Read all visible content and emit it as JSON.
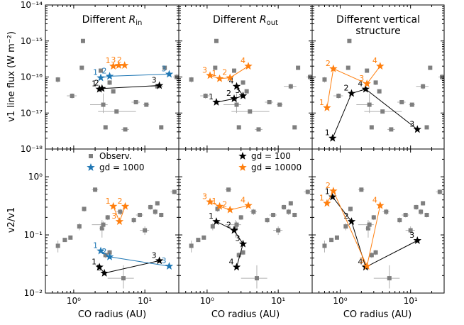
{
  "figure": {
    "ylabel_top": "v1 line flux (W m⁻²)",
    "ylabel_bottom": "v2/v1",
    "xlabel": "CO radius (AU)"
  },
  "colors": {
    "obs": "#7f7f7f",
    "gd100": "#000000",
    "gd1000": "#1f77b4",
    "gd10000": "#ff7f0e"
  },
  "legends": {
    "left": [
      {
        "marker": "square",
        "color": "#7f7f7f",
        "label": "Observ."
      },
      {
        "marker": "star",
        "color": "#1f77b4",
        "label": "gd = 1000"
      }
    ],
    "middle": [
      {
        "marker": "star",
        "color": "#000000",
        "label": "gd = 100"
      },
      {
        "marker": "star",
        "color": "#ff7f0e",
        "label": "gd = 10000"
      }
    ]
  },
  "chart_data": {
    "type": "scatter",
    "xscale": "log",
    "xlim": [
      0.4,
      30
    ],
    "xticks": [
      "10⁰",
      "10¹"
    ],
    "top_row": {
      "ylabel": "v1 line flux (W m⁻²)",
      "yscale": "log",
      "ylim": [
        1e-18,
        1e-14
      ],
      "yticks": [
        "10⁻¹⁸",
        "10⁻¹⁷",
        "10⁻¹⁶",
        "10⁻¹⁵",
        "10⁻¹⁴"
      ],
      "observations": [
        {
          "x": 0.6,
          "y": 8.5e-17,
          "xerr": [
            0.58,
            0.62
          ],
          "yerr": [
            7e-17,
            1e-16
          ]
        },
        {
          "x": 0.95,
          "y": 3e-17,
          "xerr": [
            0.8,
            1.1
          ],
          "yerr": [
            2.5e-17,
            3.5e-17
          ]
        },
        {
          "x": 1.35,
          "y": 1e-15,
          "xerr": [
            1.3,
            1.4
          ],
          "yerr": [
            1e-15,
            1e-15
          ]
        },
        {
          "x": 1.3,
          "y": 1.8e-16,
          "xerr": [
            1.25,
            1.35
          ],
          "yerr": [
            1.7e-16,
            1.9e-16
          ]
        },
        {
          "x": 2.4,
          "y": 1.5e-16,
          "xerr": [
            2.3,
            2.5
          ],
          "yerr": [
            1.4e-16,
            1.6e-16
          ]
        },
        {
          "x": 2.6,
          "y": 1.7e-17,
          "xerr": [
            1.7,
            3.0
          ],
          "yerr": [
            1e-17,
            3.5e-17
          ]
        },
        {
          "x": 2.8,
          "y": 4e-18,
          "xerr": [
            2.8,
            2.8
          ],
          "yerr": [
            4e-18,
            4e-18
          ]
        },
        {
          "x": 3.2,
          "y": 7e-17,
          "xerr": [
            3.0,
            3.4
          ],
          "yerr": [
            6e-17,
            8e-17
          ]
        },
        {
          "x": 3.6,
          "y": 4e-17,
          "xerr": [
            3.4,
            3.8
          ],
          "yerr": [
            3.5e-17,
            4.5e-17
          ]
        },
        {
          "x": 4.0,
          "y": 1.1e-17,
          "xerr": [
            2.2,
            7.5
          ],
          "yerr": [
            1.1e-17,
            1.1e-17
          ]
        },
        {
          "x": 5.3,
          "y": 3.5e-18,
          "xerr": [
            4.7,
            6.0
          ],
          "yerr": [
            3.5e-18,
            3.5e-18
          ]
        },
        {
          "x": 7.5,
          "y": 2e-17,
          "xerr": [
            6.5,
            8.5
          ],
          "yerr": [
            1.8e-17,
            2.2e-17
          ]
        },
        {
          "x": 10.5,
          "y": 1.7e-17,
          "xerr": [
            9.5,
            11.5
          ],
          "yerr": [
            1.5e-17,
            1.9e-17
          ]
        },
        {
          "x": 15.0,
          "y": 5.5e-17,
          "xerr": [
            12.0,
            18.0
          ],
          "yerr": [
            4.5e-17,
            6.5e-17
          ]
        },
        {
          "x": 17.0,
          "y": 4e-18,
          "xerr": [
            16.0,
            18.0
          ],
          "yerr": [
            4e-18,
            4e-18
          ]
        },
        {
          "x": 19.0,
          "y": 1.8e-16,
          "xerr": [
            18.0,
            20.0
          ],
          "yerr": [
            1.7e-16,
            1.9e-16
          ]
        },
        {
          "x": 28.0,
          "y": 1e-16,
          "xerr": [
            25.0,
            30.0
          ],
          "yerr": [
            8e-17,
            1.2e-16
          ]
        }
      ],
      "panels": [
        {
          "title": "Different R_in",
          "series": [
            {
              "group": "gd100",
              "points": [
                {
                  "x": 2.3,
                  "y": 4.6e-17,
                  "label": "1"
                },
                {
                  "x": 2.5,
                  "y": 4.8e-17,
                  "label": "2"
                },
                {
                  "x": 16.0,
                  "y": 5.8e-17,
                  "label": "3"
                }
              ]
            },
            {
              "group": "gd1000",
              "points": [
                {
                  "x": 2.4,
                  "y": 9.5e-17,
                  "label": "1"
                },
                {
                  "x": 3.2,
                  "y": 1.05e-16,
                  "label": "2"
                },
                {
                  "x": 22.0,
                  "y": 1.2e-16,
                  "label": "3"
                }
              ]
            },
            {
              "group": "gd10000",
              "points": [
                {
                  "x": 3.6,
                  "y": 2e-16,
                  "label": "1"
                },
                {
                  "x": 4.3,
                  "y": 2.1e-16,
                  "label": "3"
                },
                {
                  "x": 5.2,
                  "y": 2.1e-16,
                  "label": "2"
                }
              ]
            }
          ]
        },
        {
          "title": "Different R_out",
          "series": [
            {
              "group": "gd100",
              "points": [
                {
                  "x": 1.35,
                  "y": 2e-17,
                  "label": "1"
                },
                {
                  "x": 2.4,
                  "y": 2.5e-17,
                  "label": "2"
                },
                {
                  "x": 3.2,
                  "y": 3e-17,
                  "label": "3"
                },
                {
                  "x": 2.6,
                  "y": 5.5e-17,
                  "label": "4"
                }
              ]
            },
            {
              "group": "gd10000",
              "points": [
                {
                  "x": 1.1,
                  "y": 1.1e-16,
                  "label": "3"
                },
                {
                  "x": 1.5,
                  "y": 9e-17,
                  "label": "1"
                },
                {
                  "x": 2.1,
                  "y": 9.5e-17,
                  "label": "2"
                },
                {
                  "x": 3.8,
                  "y": 2e-16,
                  "label": "4"
                }
              ]
            }
          ]
        },
        {
          "title": "Different vertical structure",
          "series": [
            {
              "group": "gd100",
              "points": [
                {
                  "x": 0.78,
                  "y": 2e-18,
                  "label": "1"
                },
                {
                  "x": 1.45,
                  "y": 3.5e-17,
                  "label": "2"
                },
                {
                  "x": 2.3,
                  "y": 4.6e-17,
                  "label": "4"
                },
                {
                  "x": 12.5,
                  "y": 3.5e-18,
                  "label": "3"
                }
              ]
            },
            {
              "group": "gd10000",
              "points": [
                {
                  "x": 0.65,
                  "y": 1.4e-17,
                  "label": "1"
                },
                {
                  "x": 0.8,
                  "y": 1.7e-16,
                  "label": "2"
                },
                {
                  "x": 2.4,
                  "y": 6.5e-17,
                  "label": "3"
                },
                {
                  "x": 3.7,
                  "y": 2e-16,
                  "label": "4"
                }
              ]
            }
          ]
        }
      ]
    },
    "bottom_row": {
      "ylabel": "v2/v1",
      "yscale": "log",
      "ylim": [
        0.01,
        3
      ],
      "yticks": [
        "10⁻²",
        "10⁻¹",
        "10⁰"
      ],
      "observations": [
        {
          "x": 0.6,
          "y": 0.065,
          "xerr": [
            0.58,
            0.62
          ],
          "yerr": [
            0.05,
            0.08
          ]
        },
        {
          "x": 0.75,
          "y": 0.082,
          "xerr": [
            0.72,
            0.78
          ],
          "yerr": [
            0.08,
            0.085
          ]
        },
        {
          "x": 0.9,
          "y": 0.09,
          "xerr": [
            0.85,
            0.95
          ],
          "yerr": [
            0.085,
            0.095
          ]
        },
        {
          "x": 1.2,
          "y": 0.14,
          "xerr": [
            1.15,
            1.25
          ],
          "yerr": [
            0.12,
            0.16
          ]
        },
        {
          "x": 1.4,
          "y": 0.28,
          "xerr": [
            1.3,
            1.5
          ],
          "yerr": [
            0.25,
            0.3
          ]
        },
        {
          "x": 2.0,
          "y": 0.6,
          "xerr": [
            1.8,
            2.2
          ],
          "yerr": [
            0.55,
            0.65
          ]
        },
        {
          "x": 2.5,
          "y": 0.13,
          "xerr": [
            2.3,
            2.7
          ],
          "yerr": [
            0.09,
            0.18
          ]
        },
        {
          "x": 2.6,
          "y": 0.15,
          "xerr": [
            1.8,
            3.0
          ],
          "yerr": [
            0.13,
            0.17
          ]
        },
        {
          "x": 2.8,
          "y": 0.045,
          "xerr": [
            2.6,
            3.0
          ],
          "yerr": [
            0.04,
            0.05
          ]
        },
        {
          "x": 3.0,
          "y": 0.2,
          "xerr": [
            2.8,
            3.2
          ],
          "yerr": [
            0.18,
            0.22
          ]
        },
        {
          "x": 3.2,
          "y": 0.05,
          "xerr": [
            3.0,
            3.4
          ],
          "yerr": [
            0.045,
            0.055
          ]
        },
        {
          "x": 4.5,
          "y": 0.25,
          "xerr": [
            4.0,
            5.0
          ],
          "yerr": [
            0.22,
            0.28
          ]
        },
        {
          "x": 5.0,
          "y": 0.018,
          "xerr": [
            3.0,
            7.0
          ],
          "yerr": [
            0.012,
            0.03
          ]
        },
        {
          "x": 7.0,
          "y": 0.18,
          "xerr": [
            6.5,
            7.5
          ],
          "yerr": [
            0.16,
            0.2
          ]
        },
        {
          "x": 8.5,
          "y": 0.22,
          "xerr": [
            7.5,
            9.5
          ],
          "yerr": [
            0.2,
            0.24
          ]
        },
        {
          "x": 10.0,
          "y": 0.12,
          "xerr": [
            8.5,
            11.5
          ],
          "yerr": [
            0.1,
            0.14
          ]
        },
        {
          "x": 12.0,
          "y": 0.3,
          "xerr": [
            11.0,
            13.0
          ],
          "yerr": [
            0.27,
            0.33
          ]
        },
        {
          "x": 14.0,
          "y": 0.25,
          "xerr": [
            13.0,
            15.0
          ],
          "yerr": [
            0.22,
            0.28
          ]
        },
        {
          "x": 15.0,
          "y": 0.35,
          "xerr": [
            14.0,
            16.0
          ],
          "yerr": [
            0.32,
            0.38
          ]
        },
        {
          "x": 17.0,
          "y": 0.22,
          "xerr": [
            16.0,
            18.0
          ],
          "yerr": [
            0.2,
            0.24
          ]
        },
        {
          "x": 26.0,
          "y": 0.55,
          "xerr": [
            23.0,
            29.0
          ],
          "yerr": [
            0.5,
            0.6
          ]
        }
      ],
      "panels": [
        {
          "series": [
            {
              "group": "gd100",
              "points": [
                {
                  "x": 2.3,
                  "y": 0.028,
                  "label": "1"
                },
                {
                  "x": 2.7,
                  "y": 0.022,
                  "label": "2"
                },
                {
                  "x": 16.0,
                  "y": 0.036,
                  "label": "3"
                }
              ]
            },
            {
              "group": "gd1000",
              "points": [
                {
                  "x": 2.4,
                  "y": 0.053,
                  "label": "1"
                },
                {
                  "x": 3.2,
                  "y": 0.042,
                  "label": "2"
                },
                {
                  "x": 22.0,
                  "y": 0.029,
                  "label": "3"
                }
              ]
            },
            {
              "group": "gd10000",
              "points": [
                {
                  "x": 3.6,
                  "y": 0.31,
                  "label": "1"
                },
                {
                  "x": 4.4,
                  "y": 0.17,
                  "label": "3"
                },
                {
                  "x": 5.3,
                  "y": 0.31,
                  "label": "2"
                }
              ]
            }
          ]
        },
        {
          "series": [
            {
              "group": "gd100",
              "points": [
                {
                  "x": 1.35,
                  "y": 0.17,
                  "label": "1"
                },
                {
                  "x": 2.4,
                  "y": 0.12,
                  "label": "2"
                },
                {
                  "x": 3.2,
                  "y": 0.07,
                  "label": "3"
                },
                {
                  "x": 2.6,
                  "y": 0.028,
                  "label": "4"
                }
              ]
            },
            {
              "group": "gd10000",
              "points": [
                {
                  "x": 1.1,
                  "y": 0.37,
                  "label": "3"
                },
                {
                  "x": 1.5,
                  "y": 0.31,
                  "label": "1"
                },
                {
                  "x": 2.1,
                  "y": 0.27,
                  "label": "2"
                },
                {
                  "x": 3.8,
                  "y": 0.32,
                  "label": "4"
                }
              ]
            }
          ]
        },
        {
          "series": [
            {
              "group": "gd100",
              "points": [
                {
                  "x": 0.78,
                  "y": 0.45,
                  "label": "1"
                },
                {
                  "x": 1.45,
                  "y": 0.17,
                  "label": "2"
                },
                {
                  "x": 2.3,
                  "y": 0.028,
                  "label": "4"
                },
                {
                  "x": 12.5,
                  "y": 0.08,
                  "label": "3"
                }
              ]
            },
            {
              "group": "gd10000",
              "points": [
                {
                  "x": 0.65,
                  "y": 0.35,
                  "label": "1"
                },
                {
                  "x": 0.8,
                  "y": 0.57,
                  "label": "2"
                },
                {
                  "x": 2.4,
                  "y": 0.029,
                  "label": "3"
                },
                {
                  "x": 3.7,
                  "y": 0.32,
                  "label": "4"
                }
              ]
            }
          ]
        }
      ]
    }
  }
}
